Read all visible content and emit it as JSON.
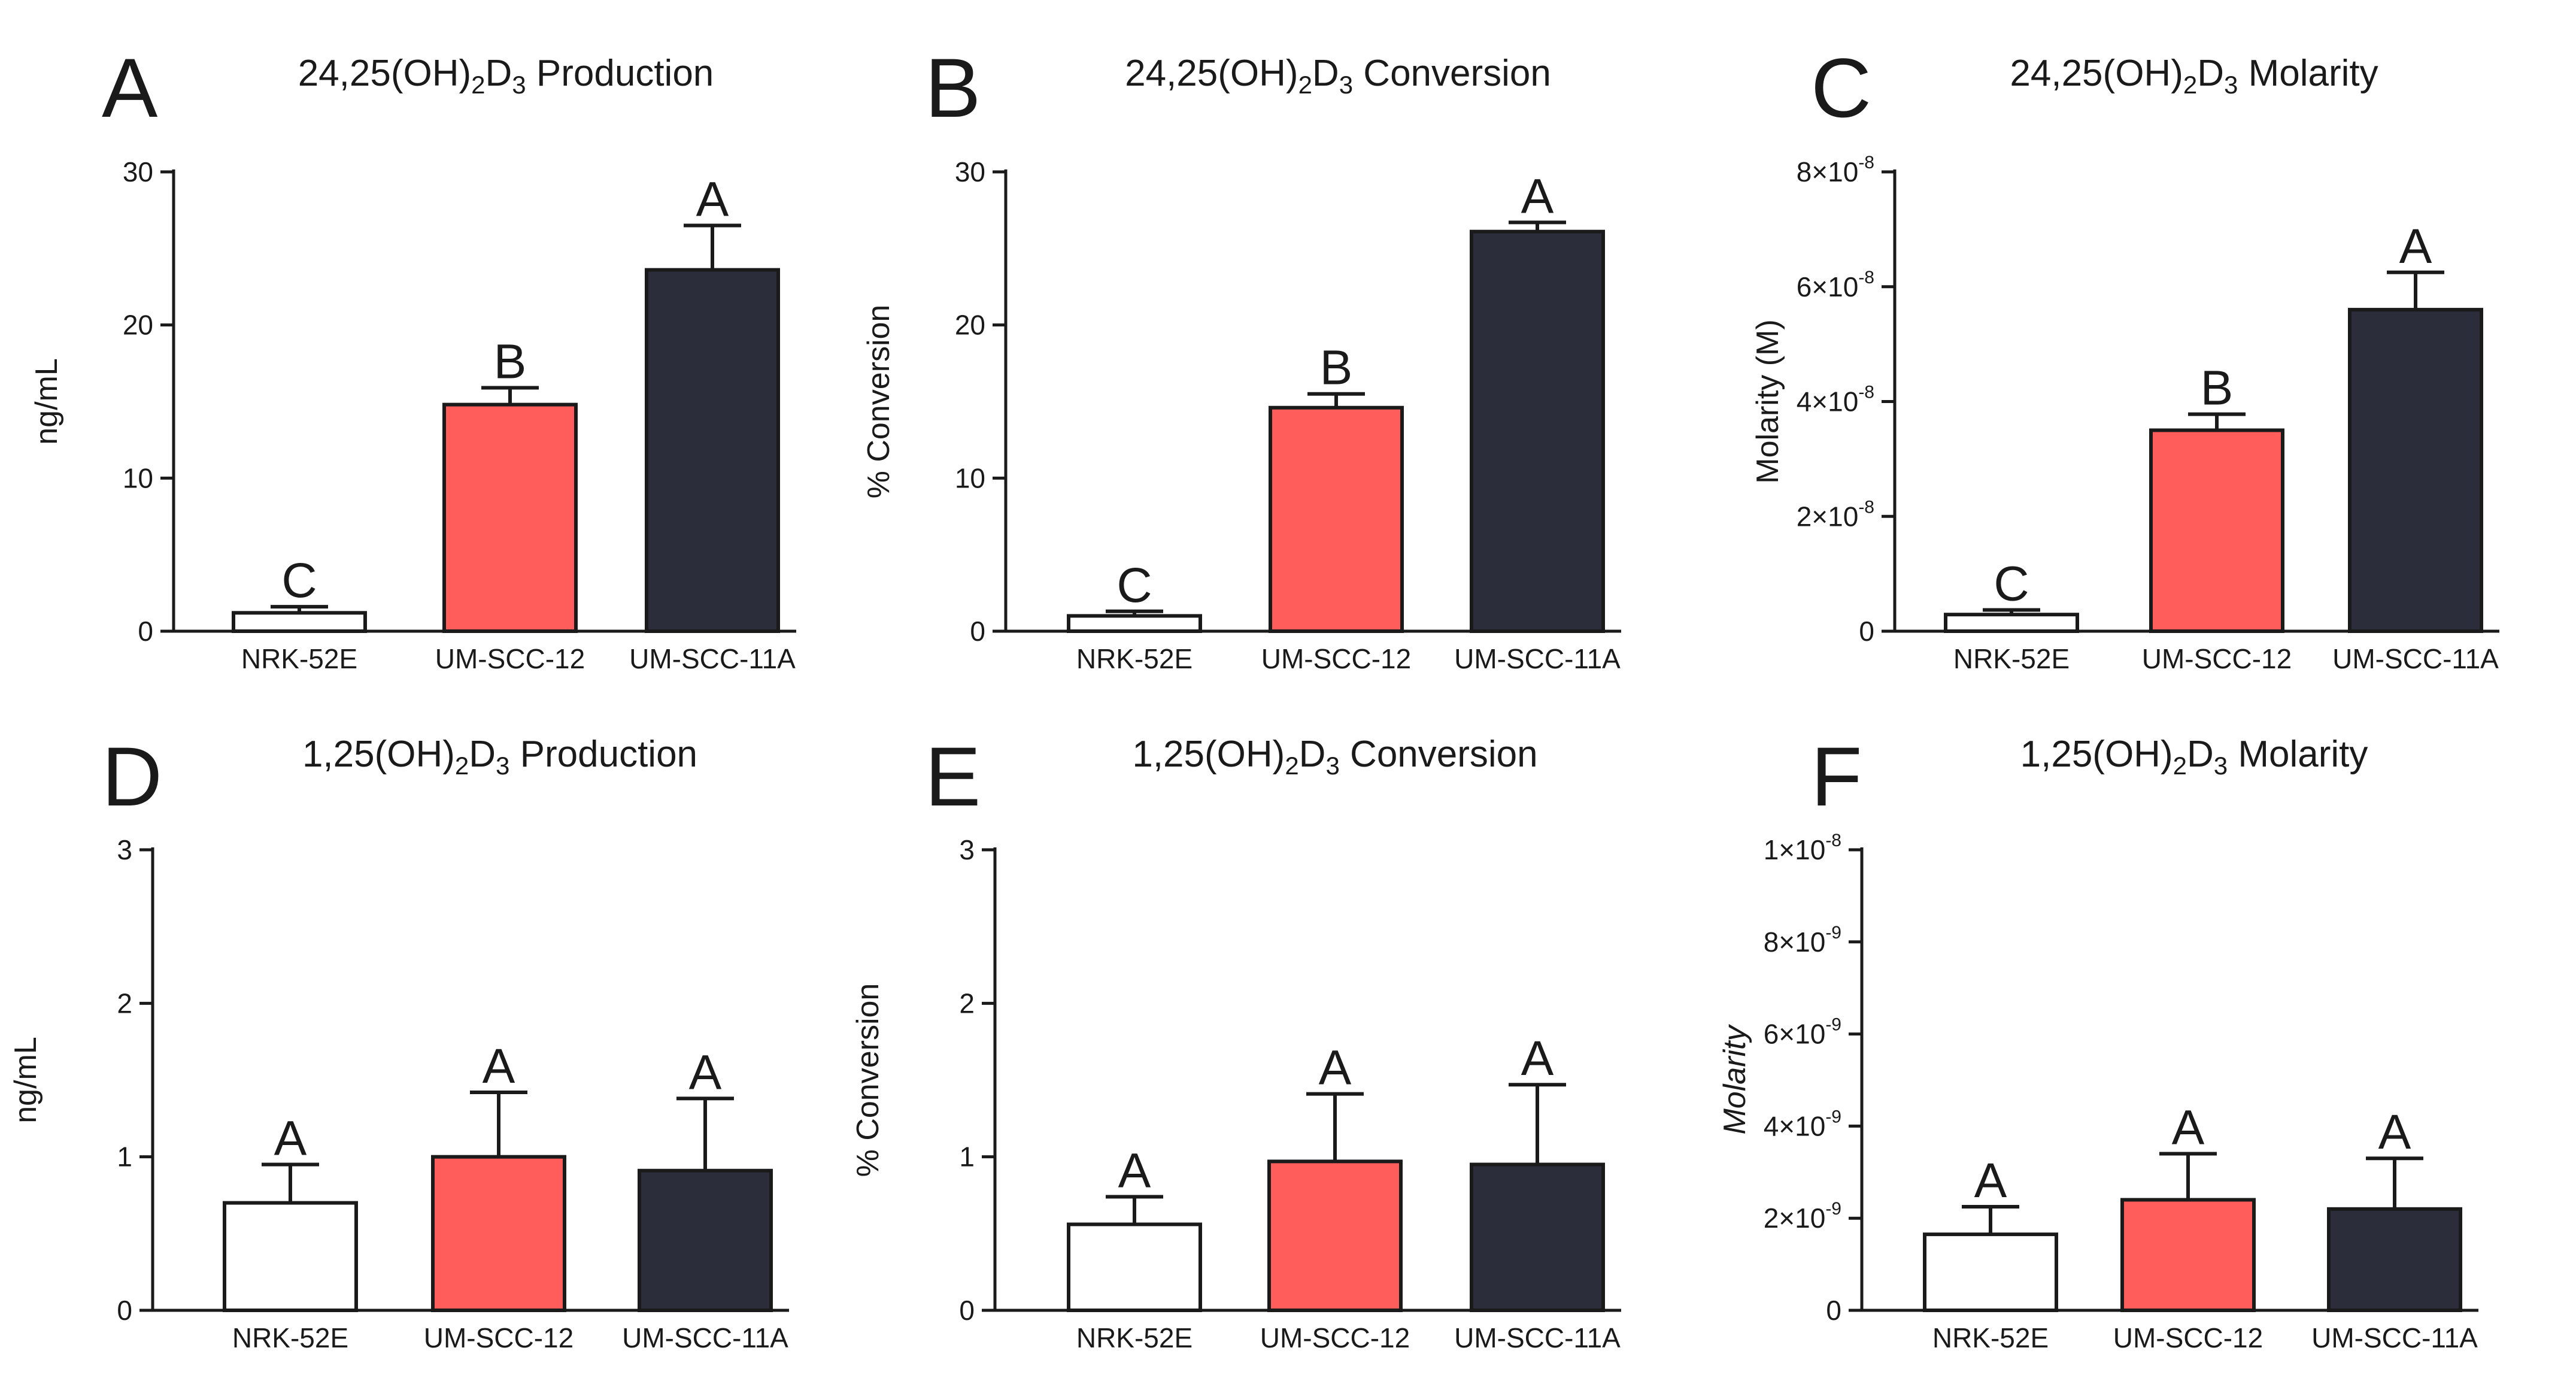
{
  "chart_data": [
    {
      "type": "bar",
      "panel": "A",
      "title": "24,25(OH)2D3 Production",
      "xlabel": "",
      "ylabel": "ng/mL",
      "ylabel_italic": false,
      "categories": [
        "NRK-52E",
        "UM-SCC-12",
        "UM-SCC-11A"
      ],
      "values": [
        1.2,
        14.8,
        23.6
      ],
      "errors": [
        0.4,
        1.1,
        2.9
      ],
      "sig_letters": [
        "C",
        "B",
        "A"
      ],
      "colors": [
        "#ffffff",
        "#ff5c5c",
        "#2b2d3a"
      ],
      "ylim": [
        0,
        30
      ],
      "ticks": [
        0,
        10,
        20,
        30
      ],
      "tick_labels": [
        {
          "text": "0",
          "exp": ""
        },
        {
          "text": "10",
          "exp": ""
        },
        {
          "text": "20",
          "exp": ""
        },
        {
          "text": "30",
          "exp": ""
        }
      ]
    },
    {
      "type": "bar",
      "panel": "B",
      "title": "24,25(OH)2D3 Conversion",
      "xlabel": "",
      "ylabel": "% Conversion",
      "ylabel_italic": false,
      "categories": [
        "NRK-52E",
        "UM-SCC-12",
        "UM-SCC-11A"
      ],
      "values": [
        1.0,
        14.6,
        26.1
      ],
      "errors": [
        0.3,
        0.9,
        0.6
      ],
      "sig_letters": [
        "C",
        "B",
        "A"
      ],
      "colors": [
        "#ffffff",
        "#ff5c5c",
        "#2b2d3a"
      ],
      "ylim": [
        0,
        30
      ],
      "ticks": [
        0,
        10,
        20,
        30
      ],
      "tick_labels": [
        {
          "text": "0",
          "exp": ""
        },
        {
          "text": "10",
          "exp": ""
        },
        {
          "text": "20",
          "exp": ""
        },
        {
          "text": "30",
          "exp": ""
        }
      ]
    },
    {
      "type": "bar",
      "panel": "C",
      "title": "24,25(OH)2D3 Molarity",
      "xlabel": "",
      "ylabel": "Molarity (M)",
      "ylabel_italic": false,
      "categories": [
        "NRK-52E",
        "UM-SCC-12",
        "UM-SCC-11A"
      ],
      "values": [
        2.9e-09,
        3.5e-08,
        5.6e-08
      ],
      "errors": [
        8e-10,
        2.8e-09,
        6.5e-09
      ],
      "sig_letters": [
        "C",
        "B",
        "A"
      ],
      "colors": [
        "#ffffff",
        "#ff5c5c",
        "#2b2d3a"
      ],
      "ylim": [
        0,
        8e-08
      ],
      "ticks": [
        0,
        2e-08,
        4e-08,
        6e-08,
        8e-08
      ],
      "tick_labels": [
        {
          "text": "0",
          "exp": ""
        },
        {
          "text": "2×10",
          "exp": "-8"
        },
        {
          "text": "4×10",
          "exp": "-8"
        },
        {
          "text": "6×10",
          "exp": "-8"
        },
        {
          "text": "8×10",
          "exp": "-8"
        }
      ]
    },
    {
      "type": "bar",
      "panel": "D",
      "title": "1,25(OH)2D3 Production",
      "xlabel": "",
      "ylabel": "ng/mL",
      "ylabel_italic": false,
      "categories": [
        "NRK-52E",
        "UM-SCC-12",
        "UM-SCC-11A"
      ],
      "values": [
        0.7,
        1.0,
        0.91
      ],
      "errors": [
        0.25,
        0.42,
        0.47
      ],
      "sig_letters": [
        "A",
        "A",
        "A"
      ],
      "colors": [
        "#ffffff",
        "#ff5c5c",
        "#2b2d3a"
      ],
      "ylim": [
        0,
        3
      ],
      "ticks": [
        0,
        1,
        2,
        3
      ],
      "tick_labels": [
        {
          "text": "0",
          "exp": ""
        },
        {
          "text": "1",
          "exp": ""
        },
        {
          "text": "2",
          "exp": ""
        },
        {
          "text": "3",
          "exp": ""
        }
      ]
    },
    {
      "type": "bar",
      "panel": "E",
      "title": "1,25(OH)2D3 Conversion",
      "xlabel": "",
      "ylabel": "% Conversion",
      "ylabel_italic": false,
      "categories": [
        "NRK-52E",
        "UM-SCC-12",
        "UM-SCC-11A"
      ],
      "values": [
        0.56,
        0.97,
        0.95
      ],
      "errors": [
        0.18,
        0.44,
        0.52
      ],
      "sig_letters": [
        "A",
        "A",
        "A"
      ],
      "colors": [
        "#ffffff",
        "#ff5c5c",
        "#2b2d3a"
      ],
      "ylim": [
        0,
        3
      ],
      "ticks": [
        0,
        1,
        2,
        3
      ],
      "tick_labels": [
        {
          "text": "0",
          "exp": ""
        },
        {
          "text": "1",
          "exp": ""
        },
        {
          "text": "2",
          "exp": ""
        },
        {
          "text": "3",
          "exp": ""
        }
      ]
    },
    {
      "type": "bar",
      "panel": "F",
      "title": "1,25(OH)2D3 Molarity",
      "xlabel": "",
      "ylabel": "Molarity",
      "ylabel_italic": true,
      "categories": [
        "NRK-52E",
        "UM-SCC-12",
        "UM-SCC-11A"
      ],
      "values": [
        1.65e-09,
        2.4e-09,
        2.2e-09
      ],
      "errors": [
        6e-10,
        1e-09,
        1.1e-09
      ],
      "sig_letters": [
        "A",
        "A",
        "A"
      ],
      "colors": [
        "#ffffff",
        "#ff5c5c",
        "#2b2d3a"
      ],
      "ylim": [
        0,
        1e-08
      ],
      "ticks": [
        0,
        2e-09,
        4e-09,
        6e-09,
        8e-09,
        1e-08
      ],
      "tick_labels": [
        {
          "text": "0",
          "exp": ""
        },
        {
          "text": "2×10",
          "exp": "-9"
        },
        {
          "text": "4×10",
          "exp": "-9"
        },
        {
          "text": "6×10",
          "exp": "-9"
        },
        {
          "text": "8×10",
          "exp": "-9"
        },
        {
          "text": "1×10",
          "exp": "-8"
        }
      ]
    }
  ]
}
